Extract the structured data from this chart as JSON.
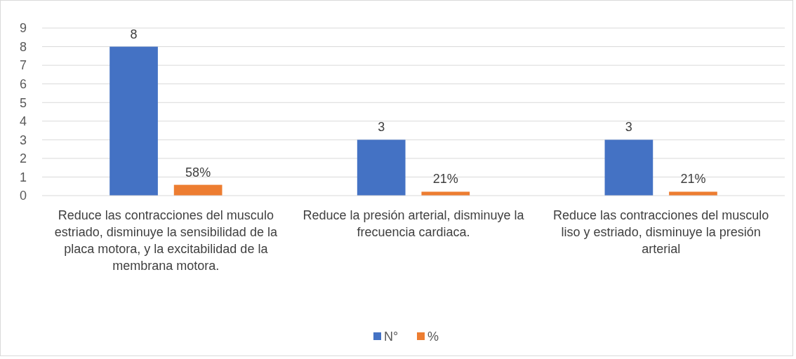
{
  "chart_data": {
    "type": "bar",
    "categories": [
      "Reduce las contracciones del musculo estriado, disminuye la sensibilidad de la placa motora, y la excitabilidad de la membrana motora.",
      "Reduce la presión arterial, disminuye la frecuencia cardiaca.",
      "Reduce las contracciones del musculo liso y estriado, disminuye la presión arterial"
    ],
    "series": [
      {
        "name": "N°",
        "color": "#4472c4",
        "values": [
          8,
          3,
          3
        ],
        "value_labels": [
          "8",
          "3",
          "3"
        ]
      },
      {
        "name": "%",
        "color": "#ed7d31",
        "values": [
          0.58,
          0.21,
          0.21
        ],
        "value_labels": [
          "58%",
          "21%",
          "21%"
        ]
      }
    ],
    "ylim": [
      0,
      9
    ],
    "yticks": [
      0,
      1,
      2,
      3,
      4,
      5,
      6,
      7,
      8,
      9
    ],
    "grid": "y",
    "legend": "bottom"
  }
}
